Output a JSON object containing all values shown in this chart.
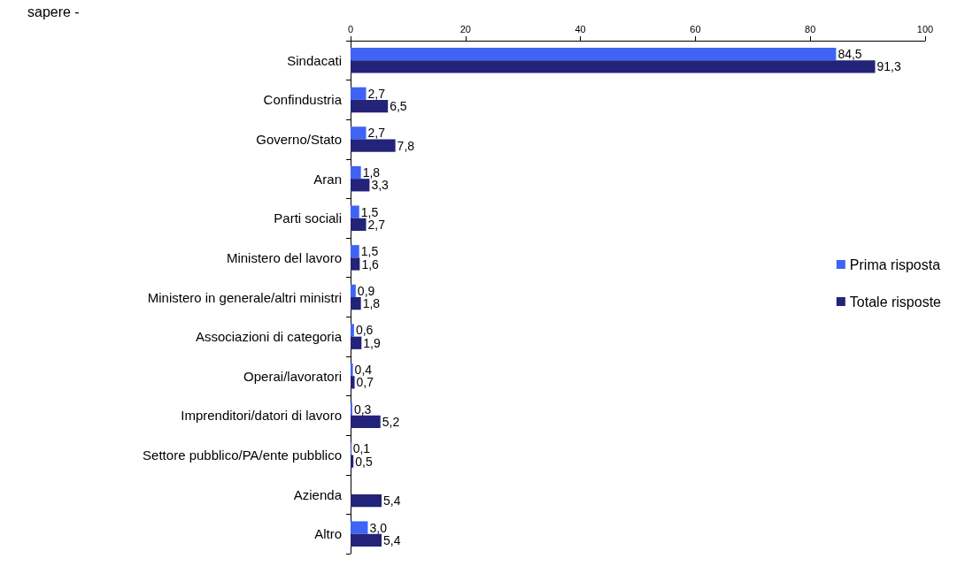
{
  "chart_data": {
    "type": "bar",
    "orientation": "horizontal",
    "title": "sapere -",
    "categories": [
      "Sindacati",
      "Confindustria",
      "Governo/Stato",
      "Aran",
      "Parti sociali",
      "Ministero del lavoro",
      "Ministero in generale/altri ministri",
      "Associazioni di categoria",
      "Operai/lavoratori",
      "Imprenditori/datori di lavoro",
      "Settore pubblico/PA/ente pubblico",
      "Azienda",
      "Altro"
    ],
    "series": [
      {
        "name": "Prima risposta",
        "color": "#3f63f5",
        "values": [
          84.5,
          2.7,
          2.7,
          1.8,
          1.5,
          1.5,
          0.9,
          0.6,
          0.4,
          0.3,
          0.1,
          null,
          3.0
        ],
        "value_labels": [
          "84,5",
          "2,7",
          "2,7",
          "1,8",
          "1,5",
          "1,5",
          "0,9",
          "0,6",
          "0,4",
          "0,3",
          "0,1",
          null,
          "3,0"
        ]
      },
      {
        "name": "Totale risposte",
        "color": "#23237a",
        "values": [
          91.3,
          6.5,
          7.8,
          3.3,
          2.7,
          1.6,
          1.8,
          1.9,
          0.7,
          5.2,
          0.5,
          5.4,
          5.4
        ],
        "value_labels": [
          "91,3",
          "6,5",
          "7,8",
          "3,3",
          "2,7",
          "1,6",
          "1,8",
          "1,9",
          "0,7",
          "5,2",
          "0,5",
          "5,4",
          "5,4"
        ]
      }
    ],
    "xlim": [
      0,
      100
    ],
    "xticks": [
      0,
      20,
      40,
      60,
      80,
      100
    ],
    "grid": false,
    "legend": "right"
  }
}
